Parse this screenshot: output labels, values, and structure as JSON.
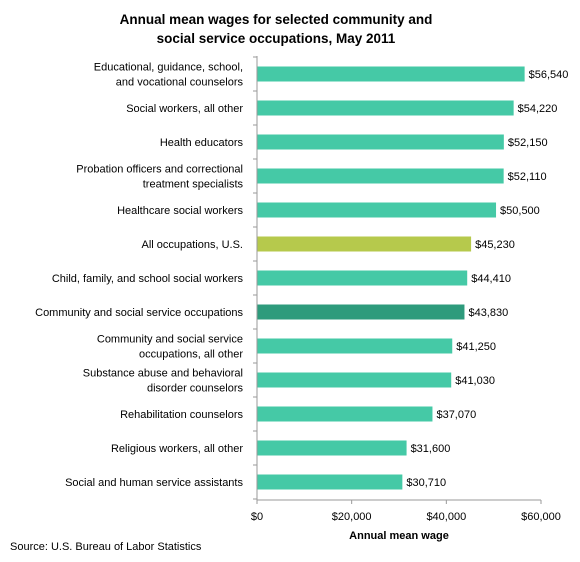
{
  "chart_data": {
    "type": "bar",
    "orientation": "horizontal",
    "title": [
      "Annual mean wages for selected community and",
      "social service occupations, May 2011"
    ],
    "categories": [
      [
        "Educational, guidance, school,",
        "and vocational counselors"
      ],
      [
        "Social workers, all other"
      ],
      [
        "Health educators"
      ],
      [
        "Probation officers and correctional",
        "treatment specialists"
      ],
      [
        "Healthcare social workers"
      ],
      [
        "All occupations, U.S."
      ],
      [
        "Child, family, and school social workers"
      ],
      [
        "Community and social service occupations"
      ],
      [
        "Community and social service",
        "occupations, all other"
      ],
      [
        "Substance abuse and behavioral",
        "disorder counselors"
      ],
      [
        "Rehabilitation counselors"
      ],
      [
        "Religious workers, all other"
      ],
      [
        "Social and human service assistants"
      ]
    ],
    "values": [
      56540,
      54220,
      52150,
      52110,
      50500,
      45230,
      44410,
      43830,
      41250,
      41030,
      37070,
      31600,
      30710
    ],
    "value_labels": [
      "$56,540",
      "$54,220",
      "$52,150",
      "$52,110",
      "$50,500",
      "$45,230",
      "$44,410",
      "$43,830",
      "$41,250",
      "$41,030",
      "$37,070",
      "$31,600",
      "$30,710"
    ],
    "bar_colors": [
      "#45c9a6",
      "#45c9a6",
      "#45c9a6",
      "#45c9a6",
      "#45c9a6",
      "#b6c94c",
      "#45c9a6",
      "#2e9b7c",
      "#45c9a6",
      "#45c9a6",
      "#45c9a6",
      "#45c9a6",
      "#45c9a6"
    ],
    "xlim": [
      0,
      60000
    ],
    "xticks": [
      0,
      20000,
      40000,
      60000
    ],
    "xtick_labels": [
      "$0",
      "$20,000",
      "$40,000",
      "$60,000"
    ],
    "xlabel": "Annual mean wage",
    "ylabel": "",
    "grid": false
  },
  "source": "Source: U.S. Bureau of Labor Statistics"
}
